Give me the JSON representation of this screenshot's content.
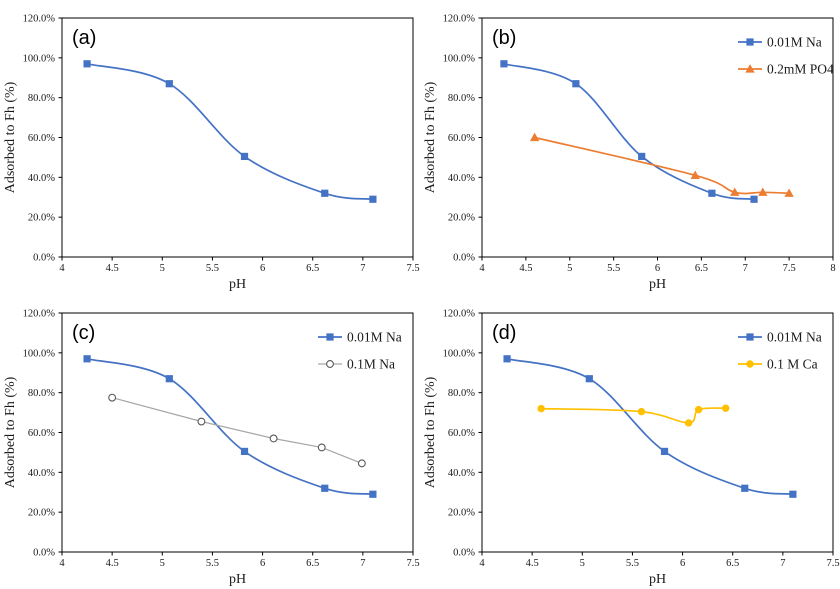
{
  "figure": {
    "xlabel": "pH",
    "ylabel": "Adsorbed to Fh (%)"
  },
  "colors": {
    "blue": "#4472C4",
    "orange": "#ED7D31",
    "gray_line": "#A6A6A6",
    "gray_marker": "#595959",
    "yellow": "#FFC000",
    "axis": "#000000",
    "tick_text": "#1a1a1a"
  },
  "chart_data": [
    {
      "type": "line",
      "panel_label": "(a)",
      "xlabel": "pH",
      "ylabel": "Adsorbed to Fh (%)",
      "xlim": [
        4,
        7.5
      ],
      "xtick_step": 0.5,
      "ylim": [
        0,
        120
      ],
      "ytick_step": 20,
      "ytick_format": "percent_1dp",
      "grid": false,
      "legend": false,
      "series": [
        {
          "name": "0.01M Na",
          "color": "#4472C4",
          "marker": "square",
          "marker_fill": "#4472C4",
          "marker_stroke": "#4472C4",
          "smooth": true,
          "line_width": 1.7,
          "x": [
            4.25,
            5.07,
            5.82,
            6.62,
            7.1
          ],
          "y": [
            97,
            87,
            50.5,
            32,
            29
          ]
        }
      ]
    },
    {
      "type": "line",
      "panel_label": "(b)",
      "xlabel": "pH",
      "ylabel": "Adsorbed to Fh (%)",
      "xlim": [
        4,
        8
      ],
      "xtick_step": 0.5,
      "ylim": [
        0,
        120
      ],
      "ytick_step": 20,
      "ytick_format": "percent_1dp",
      "grid": false,
      "legend": true,
      "legend_position": "top-right",
      "series": [
        {
          "name": "0.01M Na",
          "color": "#4472C4",
          "marker": "square",
          "marker_fill": "#4472C4",
          "marker_stroke": "#4472C4",
          "smooth": true,
          "line_width": 1.7,
          "x": [
            4.25,
            5.07,
            5.82,
            6.62,
            7.1
          ],
          "y": [
            97,
            87,
            50.5,
            32,
            29
          ]
        },
        {
          "name": "0.2mM PO4",
          "color": "#ED7D31",
          "marker": "triangle",
          "marker_fill": "#ED7D31",
          "marker_stroke": "#ED7D31",
          "smooth": true,
          "line_width": 1.7,
          "x": [
            4.6,
            6.43,
            6.88,
            7.2,
            7.5
          ],
          "y": [
            60,
            41,
            32.5,
            32.5,
            32
          ]
        }
      ]
    },
    {
      "type": "line",
      "panel_label": "(c)",
      "xlabel": "pH",
      "ylabel": "Adsorbed to Fh (%)",
      "xlim": [
        4,
        7.5
      ],
      "xtick_step": 0.5,
      "ylim": [
        0,
        120
      ],
      "ytick_step": 20,
      "ytick_format": "percent_1dp",
      "grid": false,
      "legend": true,
      "legend_position": "top-right",
      "series": [
        {
          "name": "0.01M Na",
          "color": "#4472C4",
          "marker": "square",
          "marker_fill": "#4472C4",
          "marker_stroke": "#4472C4",
          "smooth": true,
          "line_width": 1.7,
          "x": [
            4.25,
            5.07,
            5.82,
            6.62,
            7.1
          ],
          "y": [
            97,
            87,
            50.5,
            32,
            29
          ]
        },
        {
          "name": "0.1M Na",
          "color": "#A6A6A6",
          "marker": "circle-open",
          "marker_fill": "#ffffff",
          "marker_stroke": "#595959",
          "smooth": false,
          "line_width": 1.2,
          "x": [
            4.5,
            5.39,
            6.11,
            6.59,
            6.99
          ],
          "y": [
            77.5,
            65.5,
            57,
            52.5,
            44.5
          ]
        }
      ]
    },
    {
      "type": "line",
      "panel_label": "(d)",
      "xlabel": "pH",
      "ylabel": "Adsorbed to Fh (%)",
      "xlim": [
        4,
        7.5
      ],
      "xtick_step": 0.5,
      "ylim": [
        0,
        120
      ],
      "ytick_step": 20,
      "ytick_format": "percent_1dp",
      "grid": false,
      "legend": true,
      "legend_position": "top-right",
      "series": [
        {
          "name": "0.01M Na",
          "color": "#4472C4",
          "marker": "square",
          "marker_fill": "#4472C4",
          "marker_stroke": "#4472C4",
          "smooth": true,
          "line_width": 1.7,
          "x": [
            4.25,
            5.07,
            5.82,
            6.62,
            7.1
          ],
          "y": [
            97,
            87,
            50.5,
            32,
            29
          ]
        },
        {
          "name": "0.1 M Ca",
          "color": "#FFC000",
          "marker": "circle",
          "marker_fill": "#FFC000",
          "marker_stroke": "#FFC000",
          "smooth": true,
          "line_width": 1.7,
          "x": [
            4.59,
            5.59,
            6.06,
            6.16,
            6.43
          ],
          "y": [
            72,
            70.5,
            64.8,
            71.5,
            72.2
          ]
        }
      ]
    }
  ]
}
